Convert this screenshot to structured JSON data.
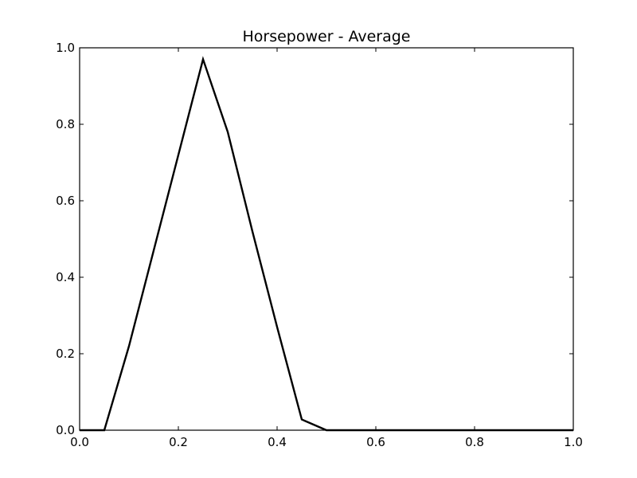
{
  "chart_data": {
    "type": "line",
    "title": "Horsepower - Average",
    "xlabel": "",
    "ylabel": "",
    "xlim": [
      0.0,
      1.0
    ],
    "ylim": [
      0.0,
      1.0
    ],
    "x_ticks": [
      "0.0",
      "0.2",
      "0.4",
      "0.6",
      "0.8",
      "1.0"
    ],
    "y_ticks": [
      "0.0",
      "0.2",
      "0.4",
      "0.6",
      "0.8",
      "1.0"
    ],
    "grid": false,
    "legend": "none",
    "line_color": "#000000",
    "series": [
      {
        "x": [
          0.0,
          0.05,
          0.1,
          0.15,
          0.2,
          0.25,
          0.3,
          0.35,
          0.4,
          0.45,
          0.5,
          0.55,
          0.6,
          0.65,
          0.7,
          0.75,
          0.8,
          0.85,
          0.9,
          0.95,
          1.0
        ],
        "y": [
          0.0,
          0.0,
          0.22,
          0.47,
          0.72,
          0.97,
          0.78,
          0.52,
          0.27,
          0.028,
          0.0,
          0.0,
          0.0,
          0.0,
          0.0,
          0.0,
          0.0,
          0.0,
          0.0,
          0.0,
          0.0
        ]
      }
    ]
  }
}
